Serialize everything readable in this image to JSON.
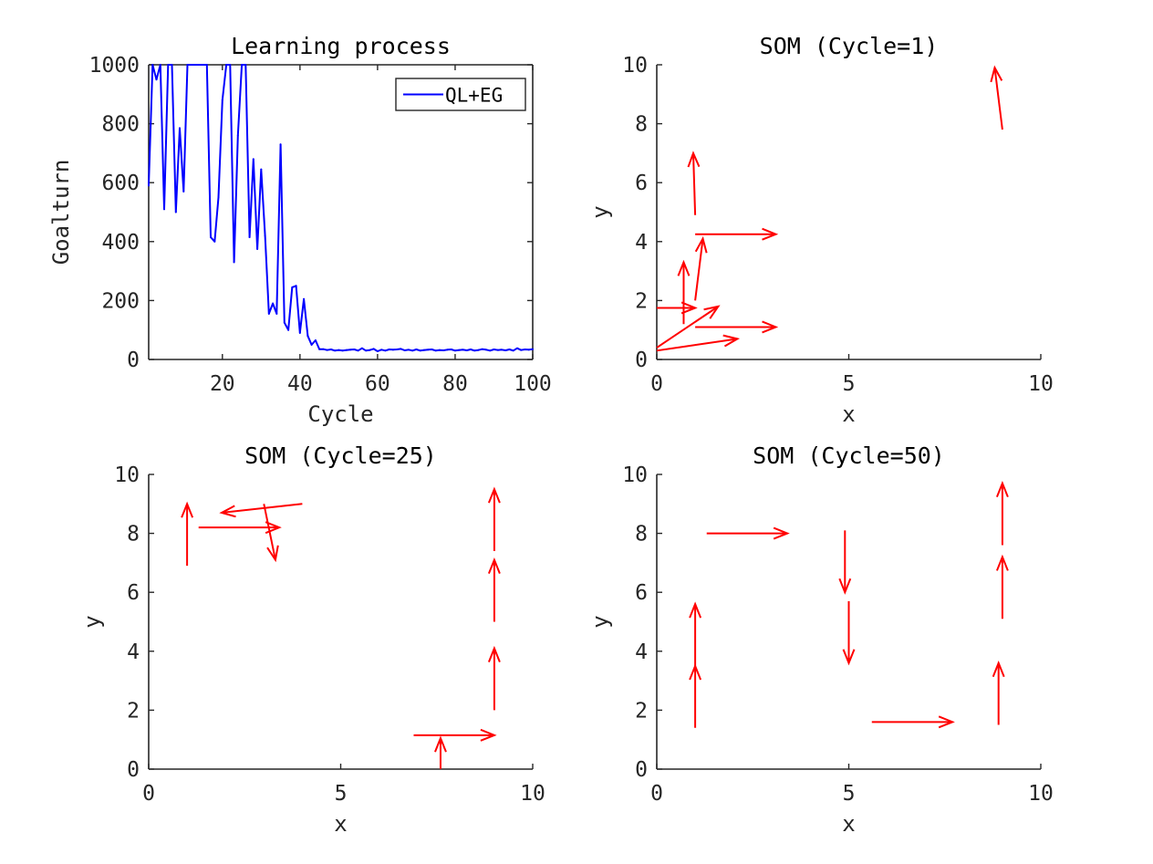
{
  "chart_data": [
    {
      "type": "line",
      "title": "Learning process",
      "xlabel": "Cycle",
      "ylabel": "Goalturn",
      "xlim": [
        1,
        100
      ],
      "ylim": [
        0,
        1000
      ],
      "xticks": [
        "20",
        "40",
        "60",
        "80",
        "100"
      ],
      "yticks": [
        "0",
        "200",
        "400",
        "600",
        "800",
        "1000"
      ],
      "legend": {
        "position": "top-right"
      },
      "series": [
        {
          "name": "QL+EG",
          "color": "#0000ff",
          "x": [
            1,
            2,
            3,
            4,
            5,
            6,
            7,
            8,
            9,
            10,
            11,
            12,
            13,
            14,
            15,
            16,
            17,
            18,
            19,
            20,
            21,
            22,
            23,
            24,
            25,
            26,
            27,
            28,
            29,
            30,
            31,
            32,
            33,
            34,
            35,
            36,
            37,
            38,
            39,
            40,
            41,
            42,
            43,
            44,
            45,
            46,
            47,
            48,
            49,
            50,
            51,
            52,
            53,
            54,
            55,
            56,
            57,
            58,
            59,
            60,
            61,
            62,
            63,
            64,
            65,
            66,
            67,
            68,
            69,
            70,
            71,
            72,
            73,
            74,
            75,
            76,
            77,
            78,
            79,
            80,
            81,
            82,
            83,
            84,
            85,
            86,
            87,
            88,
            89,
            90,
            91,
            92,
            93,
            94,
            95,
            96,
            97,
            98,
            99,
            100
          ],
          "y": [
            590,
            1000,
            950,
            1000,
            510,
            1000,
            1000,
            500,
            785,
            570,
            1000,
            1000,
            1000,
            1000,
            1000,
            1000,
            415,
            400,
            550,
            880,
            1000,
            1000,
            330,
            760,
            1000,
            1000,
            415,
            680,
            375,
            645,
            420,
            155,
            190,
            155,
            730,
            125,
            100,
            245,
            250,
            90,
            205,
            80,
            50,
            65,
            35,
            35,
            32,
            34,
            30,
            32,
            30,
            32,
            33,
            34,
            30,
            38,
            30,
            32,
            36,
            28,
            33,
            30,
            34,
            33,
            34,
            36,
            31,
            33,
            30,
            34,
            30,
            32,
            33,
            34,
            30,
            32,
            31,
            33,
            34,
            30,
            32,
            33,
            31,
            34,
            30,
            32,
            35,
            33,
            30,
            34,
            32,
            33,
            31,
            34,
            30,
            38,
            32,
            34,
            33,
            35
          ]
        }
      ]
    },
    {
      "type": "quiver",
      "title": "SOM (Cycle=1)",
      "xlabel": "x",
      "ylabel": "y",
      "xlim": [
        0,
        10
      ],
      "ylim": [
        0,
        10
      ],
      "xticks": [
        "0",
        "5",
        "10"
      ],
      "yticks": [
        "0",
        "2",
        "4",
        "6",
        "8",
        "10"
      ],
      "arrows": [
        {
          "x": 0.0,
          "y": 0.3,
          "u": 2.1,
          "v": 0.4
        },
        {
          "x": 0.0,
          "y": 0.4,
          "u": 1.6,
          "v": 1.4
        },
        {
          "x": 0.0,
          "y": 1.75,
          "u": 1.0,
          "v": 0.0
        },
        {
          "x": 0.7,
          "y": 1.2,
          "u": 0.0,
          "v": 2.1
        },
        {
          "x": 1.0,
          "y": 1.1,
          "u": 2.1,
          "v": 0.0
        },
        {
          "x": 1.0,
          "y": 2.0,
          "u": 0.2,
          "v": 2.1
        },
        {
          "x": 1.0,
          "y": 4.25,
          "u": 2.1,
          "v": 0.0
        },
        {
          "x": 1.0,
          "y": 4.9,
          "u": -0.05,
          "v": 2.1
        },
        {
          "x": 9.0,
          "y": 7.8,
          "u": -0.2,
          "v": 2.1
        }
      ]
    },
    {
      "type": "quiver",
      "title": "SOM (Cycle=25)",
      "xlabel": "x",
      "ylabel": "y",
      "xlim": [
        0,
        10
      ],
      "ylim": [
        0,
        10
      ],
      "xticks": [
        "0",
        "5",
        "10"
      ],
      "yticks": [
        "0",
        "2",
        "4",
        "6",
        "8",
        "10"
      ],
      "arrows": [
        {
          "x": 1.0,
          "y": 6.9,
          "u": 0.0,
          "v": 2.1
        },
        {
          "x": 1.3,
          "y": 8.2,
          "u": 2.1,
          "v": 0.0
        },
        {
          "x": 4.0,
          "y": 9.0,
          "u": -2.1,
          "v": -0.3
        },
        {
          "x": 3.0,
          "y": 9.0,
          "u": 0.3,
          "v": -1.9
        },
        {
          "x": 9.0,
          "y": 7.4,
          "u": 0.0,
          "v": 2.1
        },
        {
          "x": 9.0,
          "y": 5.0,
          "u": 0.0,
          "v": 2.1
        },
        {
          "x": 9.0,
          "y": 2.0,
          "u": 0.0,
          "v": 2.1
        },
        {
          "x": 6.9,
          "y": 1.15,
          "u": 2.1,
          "v": 0.0
        },
        {
          "x": 7.6,
          "y": 0.0,
          "u": 0.0,
          "v": 1.05
        }
      ]
    },
    {
      "type": "quiver",
      "title": "SOM (Cycle=50)",
      "xlabel": "x",
      "ylabel": "y",
      "xlim": [
        0,
        10
      ],
      "ylim": [
        0,
        10
      ],
      "xticks": [
        "0",
        "5",
        "10"
      ],
      "yticks": [
        "0",
        "2",
        "4",
        "6",
        "8",
        "10"
      ],
      "arrows": [
        {
          "x": 1.3,
          "y": 8.0,
          "u": 2.1,
          "v": 0.0
        },
        {
          "x": 4.9,
          "y": 8.1,
          "u": 0.0,
          "v": -2.1
        },
        {
          "x": 5.0,
          "y": 5.7,
          "u": 0.0,
          "v": -2.1
        },
        {
          "x": 1.0,
          "y": 1.4,
          "u": 0.0,
          "v": 2.1
        },
        {
          "x": 1.0,
          "y": 3.5,
          "u": 0.0,
          "v": 2.1
        },
        {
          "x": 5.6,
          "y": 1.6,
          "u": 2.1,
          "v": 0.0
        },
        {
          "x": 8.9,
          "y": 1.5,
          "u": 0.0,
          "v": 2.1
        },
        {
          "x": 9.0,
          "y": 5.1,
          "u": 0.0,
          "v": 2.1
        },
        {
          "x": 9.0,
          "y": 7.6,
          "u": 0.0,
          "v": 2.1
        }
      ]
    }
  ]
}
